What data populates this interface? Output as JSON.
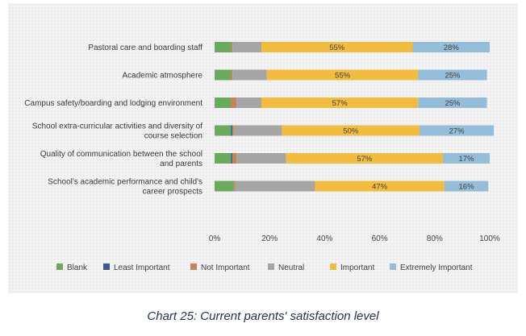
{
  "caption": "Chart 25: Current parents' satisfaction level",
  "chart_data": {
    "type": "bar",
    "orientation": "horizontal",
    "stacked": true,
    "categories": [
      [
        "Pastoral care and boarding staff"
      ],
      [
        "Academic atmosphere"
      ],
      [
        "Campus safety/boarding and lodging environment"
      ],
      [
        "School extra-curricular activities and diversity of",
        "course selection"
      ],
      [
        "Quality of communication between the school",
        "and parents"
      ],
      [
        "School's academic performance and child's",
        "career prospects"
      ]
    ],
    "series": [
      {
        "name": "Blank",
        "color": "#6aaa5c",
        "values": [
          6,
          6,
          6,
          6,
          6,
          7
        ]
      },
      {
        "name": "Least Important",
        "color": "#3c5a96",
        "values": [
          0,
          0,
          0,
          0.5,
          0.5,
          0
        ]
      },
      {
        "name": "Not Important",
        "color": "#c7825a",
        "values": [
          0.5,
          0.5,
          2,
          0.5,
          1.5,
          0.5
        ]
      },
      {
        "name": "Neutral",
        "color": "#a5a5a5",
        "values": [
          10.5,
          12.5,
          9,
          17.5,
          18,
          29
        ]
      },
      {
        "name": "Important",
        "color": "#f2bd3e",
        "values": [
          55,
          55,
          57,
          50,
          57,
          47
        ]
      },
      {
        "name": "Extremely Important",
        "color": "#93bdd8",
        "values": [
          28,
          25,
          25,
          27,
          17,
          16
        ]
      }
    ],
    "data_labels": [
      {
        "category_index": 0,
        "series": "Important",
        "text": "55%"
      },
      {
        "category_index": 0,
        "series": "Extremely Important",
        "text": "28%"
      },
      {
        "category_index": 1,
        "series": "Important",
        "text": "55%"
      },
      {
        "category_index": 1,
        "series": "Extremely Important",
        "text": "25%"
      },
      {
        "category_index": 2,
        "series": "Important",
        "text": "57%"
      },
      {
        "category_index": 2,
        "series": "Extremely Important",
        "text": "25%"
      },
      {
        "category_index": 3,
        "series": "Important",
        "text": "50%"
      },
      {
        "category_index": 3,
        "series": "Extremely Important",
        "text": "27%"
      },
      {
        "category_index": 4,
        "series": "Important",
        "text": "57%"
      },
      {
        "category_index": 4,
        "series": "Extremely Important",
        "text": "17%"
      },
      {
        "category_index": 5,
        "series": "Important",
        "text": "47%"
      },
      {
        "category_index": 5,
        "series": "Extremely Important",
        "text": "16%"
      }
    ],
    "x_ticks": [
      "0%",
      "20%",
      "40%",
      "60%",
      "80%",
      "100%"
    ],
    "xlim": [
      0,
      100
    ],
    "legend_position": "bottom",
    "grid": false
  }
}
